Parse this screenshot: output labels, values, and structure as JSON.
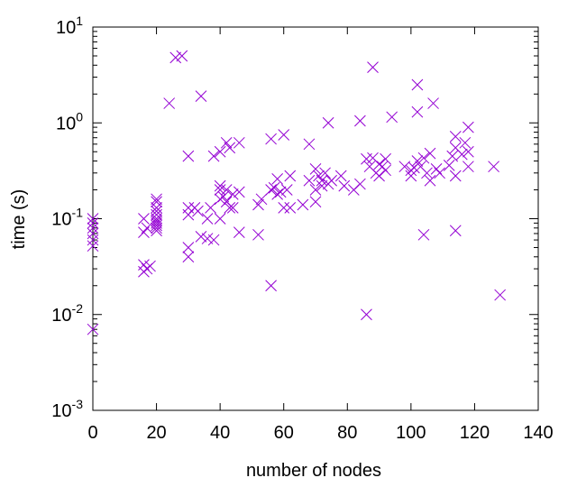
{
  "chart_data": {
    "type": "scatter",
    "xlabel": "number of nodes",
    "ylabel": "time (s)",
    "xlim": [
      0,
      140
    ],
    "ylim": [
      0.001,
      10
    ],
    "yscale": "log",
    "grid": false,
    "legend": "none",
    "marker": "x",
    "color": "#9400d3",
    "xticks": [
      "0",
      "20",
      "40",
      "60",
      "80",
      "100",
      "120",
      "140"
    ],
    "yticks": [
      {
        "base": "10",
        "exp": "-3"
      },
      {
        "base": "10",
        "exp": "-2"
      },
      {
        "base": "10",
        "exp": "-1"
      },
      {
        "base": "10",
        "exp": "0"
      },
      {
        "base": "10",
        "exp": "1"
      }
    ],
    "points": [
      [
        0,
        0.1
      ],
      [
        0,
        0.09
      ],
      [
        0,
        0.08
      ],
      [
        0,
        0.07
      ],
      [
        0,
        0.06
      ],
      [
        0,
        0.052
      ],
      [
        0,
        0.007
      ],
      [
        16,
        0.1
      ],
      [
        16,
        0.072
      ],
      [
        16,
        0.033
      ],
      [
        16,
        0.028
      ],
      [
        17,
        0.03
      ],
      [
        18,
        0.032
      ],
      [
        17,
        0.08
      ],
      [
        20,
        0.16
      ],
      [
        20,
        0.15
      ],
      [
        20,
        0.13
      ],
      [
        20,
        0.12
      ],
      [
        20,
        0.11
      ],
      [
        20,
        0.1
      ],
      [
        20,
        0.095
      ],
      [
        20,
        0.09
      ],
      [
        20,
        0.085
      ],
      [
        20,
        0.08
      ],
      [
        20,
        0.075
      ],
      [
        24,
        1.6
      ],
      [
        26,
        4.8
      ],
      [
        28,
        5.0
      ],
      [
        34,
        1.9
      ],
      [
        30,
        0.45
      ],
      [
        30,
        0.13
      ],
      [
        30,
        0.11
      ],
      [
        30,
        0.05
      ],
      [
        30,
        0.04
      ],
      [
        32,
        0.13
      ],
      [
        33,
        0.12
      ],
      [
        34,
        0.065
      ],
      [
        36,
        0.1
      ],
      [
        36,
        0.062
      ],
      [
        38,
        0.06
      ],
      [
        37,
        0.13
      ],
      [
        38,
        0.45
      ],
      [
        40,
        0.5
      ],
      [
        40,
        0.22
      ],
      [
        40,
        0.2
      ],
      [
        40,
        0.16
      ],
      [
        40,
        0.1
      ],
      [
        41,
        0.17
      ],
      [
        42,
        0.62
      ],
      [
        42,
        0.2
      ],
      [
        42,
        0.15
      ],
      [
        43,
        0.13
      ],
      [
        43,
        0.55
      ],
      [
        44,
        0.18
      ],
      [
        44,
        0.13
      ],
      [
        46,
        0.62
      ],
      [
        46,
        0.19
      ],
      [
        46,
        0.072
      ],
      [
        52,
        0.14
      ],
      [
        52,
        0.068
      ],
      [
        53,
        0.16
      ],
      [
        56,
        0.68
      ],
      [
        56,
        0.2
      ],
      [
        56,
        0.02
      ],
      [
        57,
        0.21
      ],
      [
        58,
        0.26
      ],
      [
        58,
        0.18
      ],
      [
        59,
        0.19
      ],
      [
        60,
        0.75
      ],
      [
        60,
        0.13
      ],
      [
        61,
        0.2
      ],
      [
        62,
        0.28
      ],
      [
        62,
        0.13
      ],
      [
        66,
        0.14
      ],
      [
        68,
        0.6
      ],
      [
        68,
        0.25
      ],
      [
        70,
        0.33
      ],
      [
        70,
        0.2
      ],
      [
        70,
        0.15
      ],
      [
        71,
        0.28
      ],
      [
        72,
        0.25
      ],
      [
        72,
        0.22
      ],
      [
        73,
        0.3
      ],
      [
        74,
        1.0
      ],
      [
        74,
        0.23
      ],
      [
        75,
        0.25
      ],
      [
        78,
        0.28
      ],
      [
        79,
        0.22
      ],
      [
        82,
        0.2
      ],
      [
        84,
        1.05
      ],
      [
        84,
        0.23
      ],
      [
        86,
        0.42
      ],
      [
        86,
        0.01
      ],
      [
        87,
        0.35
      ],
      [
        88,
        3.8
      ],
      [
        88,
        0.43
      ],
      [
        89,
        0.3
      ],
      [
        90,
        0.37
      ],
      [
        90,
        0.28
      ],
      [
        91,
        0.35
      ],
      [
        92,
        0.32
      ],
      [
        92,
        0.42
      ],
      [
        94,
        1.15
      ],
      [
        98,
        0.35
      ],
      [
        100,
        0.32
      ],
      [
        100,
        0.28
      ],
      [
        101,
        0.34
      ],
      [
        102,
        2.5
      ],
      [
        102,
        1.3
      ],
      [
        102,
        0.4
      ],
      [
        103,
        0.35
      ],
      [
        104,
        0.43
      ],
      [
        104,
        0.068
      ],
      [
        105,
        0.3
      ],
      [
        106,
        0.48
      ],
      [
        106,
        0.25
      ],
      [
        107,
        1.6
      ],
      [
        108,
        0.33
      ],
      [
        109,
        0.3
      ],
      [
        112,
        0.36
      ],
      [
        113,
        0.45
      ],
      [
        114,
        0.72
      ],
      [
        114,
        0.55
      ],
      [
        114,
        0.28
      ],
      [
        114,
        0.075
      ],
      [
        116,
        0.47
      ],
      [
        117,
        0.62
      ],
      [
        118,
        0.9
      ],
      [
        118,
        0.5
      ],
      [
        118,
        0.35
      ],
      [
        126,
        0.35
      ],
      [
        128,
        0.016
      ]
    ]
  }
}
